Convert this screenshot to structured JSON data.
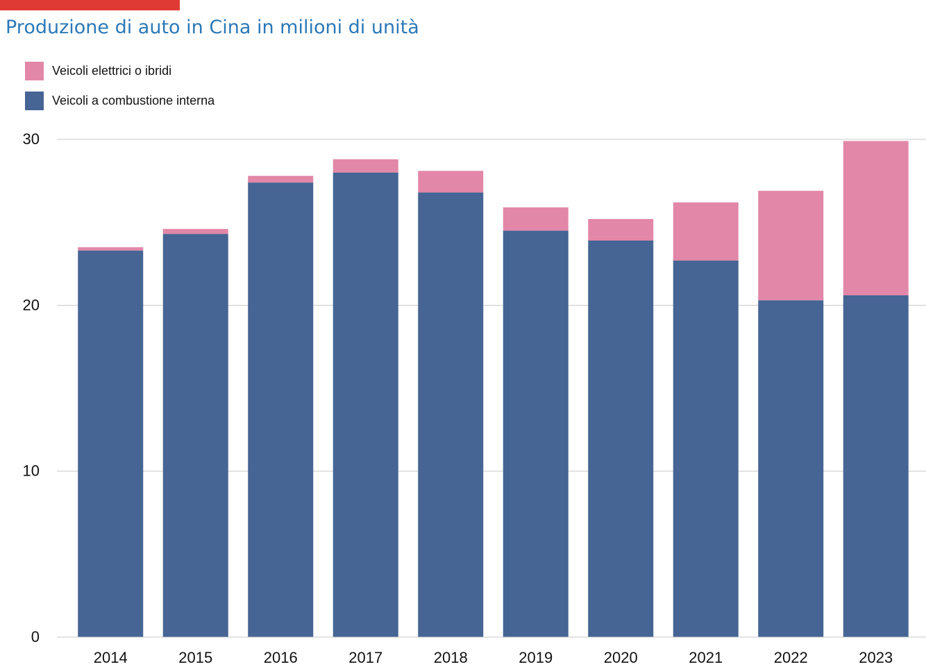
{
  "title": "Produzione di auto in Cina in milioni di unità",
  "colors": {
    "accent_bar": "#e03a34",
    "title": "#2b78b8",
    "grid": "#c8c8c8"
  },
  "legend": [
    {
      "label": "Veicoli elettrici o ibridi",
      "color": "#e287a7"
    },
    {
      "label": "Veicoli a combustione interna",
      "color": "#466594"
    }
  ],
  "chart_data": {
    "type": "bar",
    "stacked": true,
    "title": "Produzione di auto in Cina in milioni di unità",
    "categories": [
      "2014",
      "2015",
      "2016",
      "2017",
      "2018",
      "2019",
      "2020",
      "2021",
      "2022",
      "2023"
    ],
    "series": [
      {
        "name": "Veicoli a combustione interna",
        "color": "#466594",
        "values": [
          23.3,
          24.3,
          27.4,
          28.0,
          26.8,
          24.5,
          23.9,
          22.7,
          20.3,
          20.6
        ]
      },
      {
        "name": "Veicoli elettrici o ibridi",
        "color": "#e287a7",
        "values": [
          0.2,
          0.3,
          0.4,
          0.8,
          1.3,
          1.4,
          1.3,
          3.5,
          6.6,
          9.3
        ]
      }
    ],
    "yticks": [
      "0",
      "10",
      "20",
      "30"
    ],
    "ylim": [
      0,
      30
    ],
    "grid": true,
    "legend_position": "top-left"
  }
}
